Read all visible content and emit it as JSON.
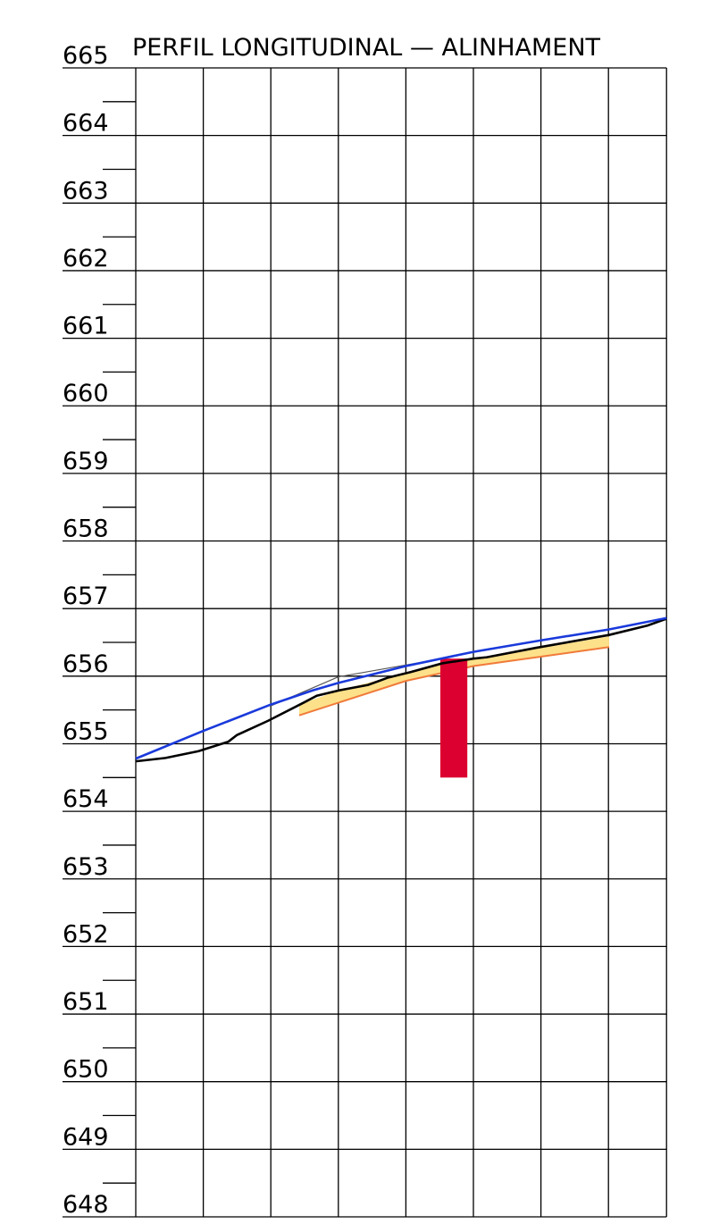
{
  "chart_data": {
    "type": "line",
    "title": "PERFIL LONGITUDINAL — ALINHAMENT",
    "xlim": [
      0,
      7.86
    ],
    "xticks": [
      0,
      1,
      2,
      3,
      4,
      5,
      6,
      7
    ],
    "ylim": [
      648,
      665
    ],
    "yticks": [
      648,
      649,
      650,
      651,
      652,
      653,
      654,
      655,
      656,
      657,
      658,
      659,
      660,
      661,
      662,
      663,
      664,
      665
    ],
    "grid": true,
    "series": [
      {
        "color": "#000000",
        "x": [
          0,
          0.44,
          0.93,
          1.37,
          1.5,
          1.96,
          2.49,
          2.68,
          3.01,
          3.44,
          3.74,
          4.07,
          4.54,
          5.0,
          5.2,
          5.93,
          7.01,
          7.58,
          7.86
        ],
        "values": [
          654.74,
          654.79,
          654.89,
          655.03,
          655.13,
          655.34,
          655.61,
          655.71,
          655.79,
          655.87,
          655.98,
          656.06,
          656.19,
          656.26,
          656.28,
          656.42,
          656.61,
          656.75,
          656.85
        ]
      },
      {
        "color": "#1a3adb",
        "x": [
          0,
          1,
          2,
          2.62,
          3,
          4,
          5,
          6,
          7,
          7.86
        ],
        "values": [
          654.78,
          655.19,
          655.58,
          655.79,
          655.9,
          656.15,
          656.36,
          656.53,
          656.69,
          656.86
        ]
      },
      {
        "color": "#555555",
        "x": [
          2,
          3,
          4.54
        ],
        "values": [
          655.56,
          655.99,
          656.26
        ]
      }
    ],
    "band": {
      "color": "#fde08a",
      "edge_color": "#f07a3a",
      "top_x": [
        2.42,
        3.01,
        3.74,
        4.54,
        5.2,
        7.01
      ],
      "top": [
        655.58,
        655.79,
        655.98,
        656.19,
        656.28,
        656.59
      ],
      "bottom_x": [
        2.42,
        4.0,
        5.0,
        7.01
      ],
      "bottom": [
        655.42,
        655.93,
        656.15,
        656.43
      ]
    },
    "red_bar": {
      "color": "#dc0030",
      "x": [
        4.51,
        4.91
      ],
      "top": 656.26,
      "bottom": 654.5
    }
  }
}
